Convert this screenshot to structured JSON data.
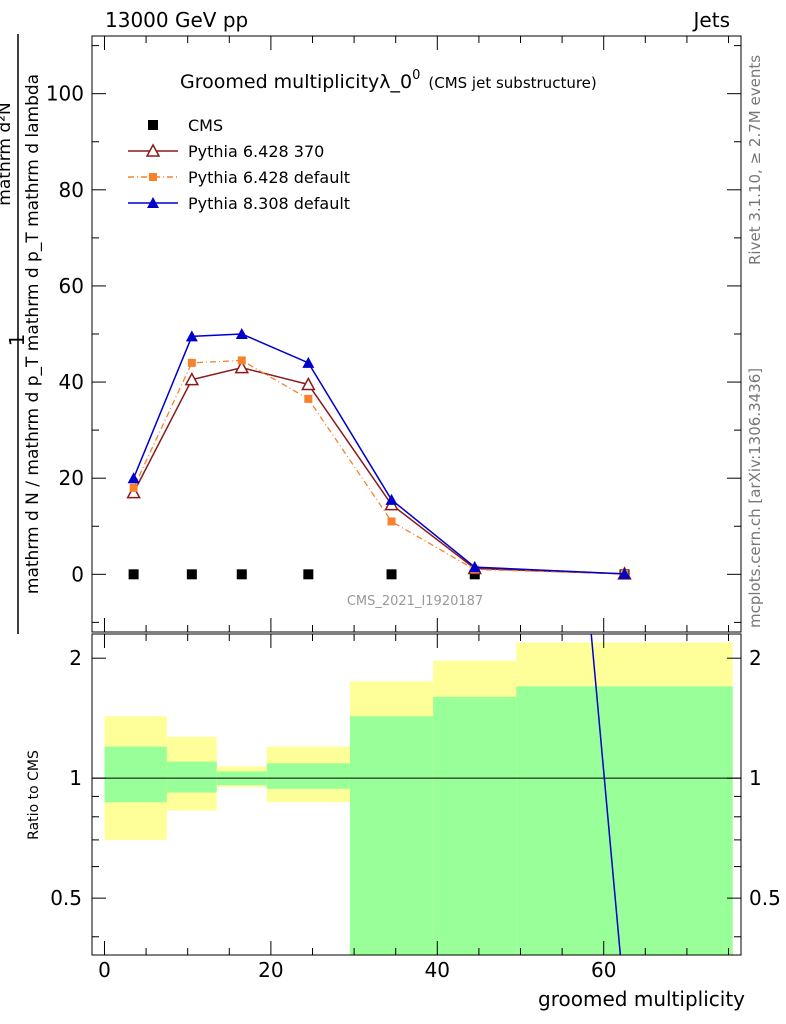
{
  "header": {
    "left": "13000 GeV pp",
    "right": "Jets"
  },
  "side_text": {
    "top": "Rivet 3.1.10, ≥ 2.7M events",
    "bottom": "mcplots.cern.ch [arXiv:1306.3436]"
  },
  "colors": {
    "cms": "#000000",
    "p6_370": "#8b1a1a",
    "p6_default": "#f5822d",
    "p8": "#0000cc",
    "band_inner": "#99ff99",
    "band_outer": "#ffff99"
  },
  "chart_data": {
    "type": "line",
    "title": "Groomed multiplicityλ_0",
    "title_sup": "0",
    "subtitle": "(CMS jet substructure)",
    "watermark": "CMS_2021_I1920187",
    "xlabel": "groomed multiplicity",
    "ylabel_top": "1",
    "ylabel_num": "mathrm d²N",
    "ylabel_den": "mathrm d N / mathrm d p_T mathrm d p_T mathrm d lambda",
    "ratio_ylabel": "Ratio to CMS",
    "xlim": [
      -1.5,
      76.5
    ],
    "ylim": [
      -12,
      112
    ],
    "ratio_ylim": [
      0.36,
      2.3
    ],
    "x_ticks": [
      "0",
      "20",
      "40",
      "60"
    ],
    "y_ticks": [
      "0",
      "20",
      "40",
      "60",
      "80",
      "100"
    ],
    "ratio_ticks": [
      "0.5",
      "1",
      "2"
    ],
    "x": [
      3.5,
      10.5,
      16.5,
      24.5,
      34.5,
      44.5,
      62.5
    ],
    "series": [
      {
        "name": "CMS",
        "key": "cms",
        "marker": "square",
        "values": [
          0,
          0,
          0,
          0,
          0,
          0,
          0
        ]
      },
      {
        "name": "Pythia 6.428 370",
        "key": "p6_370",
        "marker": "open-triangle",
        "values": [
          17,
          40.5,
          43,
          39.5,
          14.5,
          1.2,
          0.1
        ]
      },
      {
        "name": "Pythia 6.428 default",
        "key": "p6_default",
        "marker": "small-square",
        "values": [
          18,
          44,
          44.5,
          36.5,
          11,
          1.0,
          0.1
        ]
      },
      {
        "name": "Pythia 8.308 default",
        "key": "p8",
        "marker": "filled-triangle",
        "values": [
          20,
          49.5,
          50,
          44,
          15.5,
          1.5,
          0.1
        ]
      }
    ],
    "ratio_bands": [
      {
        "xlo": 0,
        "xhi": 7.5,
        "inner": [
          0.87,
          1.2
        ],
        "outer": [
          0.7,
          1.43
        ]
      },
      {
        "xlo": 7.5,
        "xhi": 13.5,
        "inner": [
          0.92,
          1.1
        ],
        "outer": [
          0.83,
          1.27
        ]
      },
      {
        "xlo": 13.5,
        "xhi": 19.5,
        "inner": [
          0.96,
          1.04
        ],
        "outer": [
          0.95,
          1.07
        ]
      },
      {
        "xlo": 19.5,
        "xhi": 29.5,
        "inner": [
          0.94,
          1.09
        ],
        "outer": [
          0.87,
          1.2
        ]
      },
      {
        "xlo": 29.5,
        "xhi": 39.5,
        "inner": [
          0.36,
          1.43
        ],
        "outer": [
          0.36,
          1.75
        ]
      },
      {
        "xlo": 39.5,
        "xhi": 49.5,
        "inner": [
          0.36,
          1.6
        ],
        "outer": [
          0.36,
          1.97
        ]
      },
      {
        "xlo": 49.5,
        "xhi": 75.5,
        "inner": [
          0.36,
          1.7
        ],
        "outer": [
          0.36,
          2.19
        ]
      }
    ],
    "ratio_line": {
      "from": [
        58.5,
        2.3
      ],
      "to": [
        62.0,
        0.36
      ]
    }
  }
}
